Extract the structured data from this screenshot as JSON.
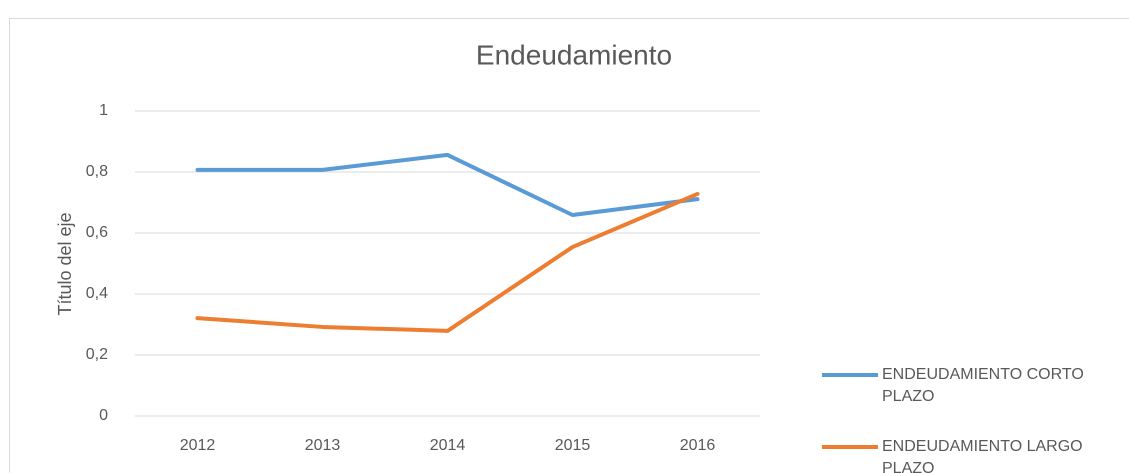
{
  "chart_data": {
    "type": "line",
    "title": "Endeudamiento",
    "y_label": "Título del eje",
    "categories": [
      "2012",
      "2013",
      "2014",
      "2015",
      "2016"
    ],
    "series": [
      {
        "name": "ENDEUDAMIENTO CORTO PLAZO",
        "color": "#5b9bd5",
        "values": [
          0.807,
          0.807,
          0.856,
          0.659,
          0.711
        ]
      },
      {
        "name": "ENDEUDAMIENTO LARGO PLAZO",
        "color": "#ed7d31",
        "values": [
          0.321,
          0.292,
          0.279,
          0.554,
          0.728
        ]
      }
    ],
    "ylim": [
      0,
      1
    ],
    "yticks": [
      0,
      {
        "value": 0.2,
        "label": "0,2"
      },
      {
        "value": 0.4,
        "label": "0,4"
      },
      {
        "value": 0.6,
        "label": "0,6"
      },
      {
        "value": 0.8,
        "label": "0,8"
      },
      1
    ],
    "grid": true,
    "legend": "right"
  }
}
